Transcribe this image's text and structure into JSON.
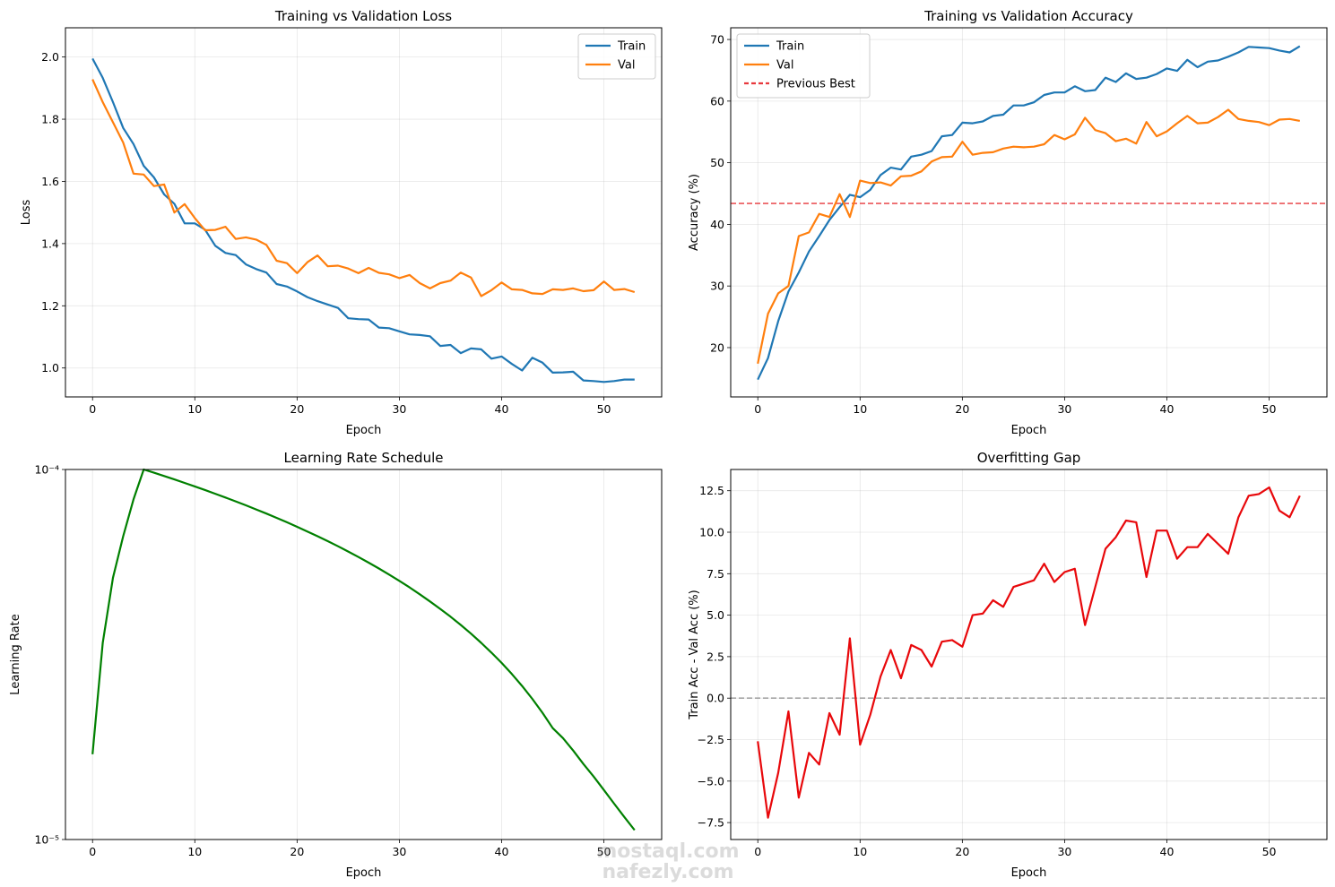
{
  "chart_data": [
    {
      "type": "line",
      "title": "Training vs Validation Loss",
      "xlabel": "Epoch",
      "ylabel": "Loss",
      "xlim": [
        -2.65,
        55.65
      ],
      "ylim": [
        0.907,
        2.094
      ],
      "xticks": [
        0,
        10,
        20,
        30,
        40,
        50
      ],
      "xtick_labels": [
        "0",
        "10",
        "20",
        "30",
        "40",
        "50"
      ],
      "yticks": [
        1.0,
        1.2,
        1.4,
        1.6,
        1.8,
        2.0
      ],
      "ytick_labels": [
        "1.0",
        "1.2",
        "1.4",
        "1.6",
        "1.8",
        "2.0"
      ],
      "grid": true,
      "legend": "upper right",
      "series": [
        {
          "name": "Train",
          "color": "#1f77b4",
          "x": [
            0,
            1,
            2,
            3,
            4,
            5,
            6,
            7,
            8,
            9,
            10,
            11,
            12,
            13,
            14,
            15,
            16,
            17,
            18,
            19,
            20,
            21,
            22,
            23,
            24,
            25,
            26,
            27,
            28,
            29,
            30,
            31,
            32,
            33,
            34,
            35,
            36,
            37,
            38,
            39,
            40,
            41,
            42,
            43,
            44,
            45,
            46,
            47,
            48,
            49,
            50,
            51,
            52,
            53
          ],
          "y": [
            1.995,
            1.933,
            1.855,
            1.772,
            1.72,
            1.65,
            1.613,
            1.558,
            1.528,
            1.465,
            1.465,
            1.445,
            1.393,
            1.37,
            1.363,
            1.333,
            1.318,
            1.307,
            1.27,
            1.262,
            1.246,
            1.228,
            1.215,
            1.204,
            1.193,
            1.16,
            1.157,
            1.156,
            1.13,
            1.128,
            1.118,
            1.108,
            1.106,
            1.102,
            1.071,
            1.074,
            1.048,
            1.063,
            1.06,
            1.03,
            1.037,
            1.013,
            0.992,
            1.033,
            1.017,
            0.985,
            0.986,
            0.988,
            0.96,
            0.958,
            0.955,
            0.958,
            0.963,
            0.963
          ]
        },
        {
          "name": "Val",
          "color": "#ff7f0e",
          "x": [
            0,
            1,
            2,
            3,
            4,
            5,
            6,
            7,
            8,
            9,
            10,
            11,
            12,
            13,
            14,
            15,
            16,
            17,
            18,
            19,
            20,
            21,
            22,
            23,
            24,
            25,
            26,
            27,
            28,
            29,
            30,
            31,
            32,
            33,
            34,
            35,
            36,
            37,
            38,
            39,
            40,
            41,
            42,
            43,
            44,
            45,
            46,
            47,
            48,
            49,
            50,
            51,
            52,
            53
          ],
          "y": [
            1.928,
            1.855,
            1.79,
            1.725,
            1.625,
            1.622,
            1.585,
            1.59,
            1.5,
            1.527,
            1.482,
            1.443,
            1.444,
            1.454,
            1.415,
            1.42,
            1.413,
            1.396,
            1.345,
            1.337,
            1.305,
            1.34,
            1.362,
            1.327,
            1.329,
            1.32,
            1.305,
            1.322,
            1.306,
            1.301,
            1.289,
            1.299,
            1.273,
            1.256,
            1.273,
            1.281,
            1.307,
            1.291,
            1.231,
            1.25,
            1.275,
            1.253,
            1.251,
            1.24,
            1.238,
            1.253,
            1.251,
            1.256,
            1.247,
            1.25,
            1.278,
            1.251,
            1.254,
            1.244
          ]
        }
      ]
    },
    {
      "type": "line",
      "title": "Training vs Validation Accuracy",
      "xlabel": "Epoch",
      "ylabel": "Accuracy (%)",
      "xlim": [
        -2.65,
        55.65
      ],
      "ylim": [
        12.0,
        71.9
      ],
      "xticks": [
        0,
        10,
        20,
        30,
        40,
        50
      ],
      "xtick_labels": [
        "0",
        "10",
        "20",
        "30",
        "40",
        "50"
      ],
      "yticks": [
        20,
        30,
        40,
        50,
        60,
        70
      ],
      "ytick_labels": [
        "20",
        "30",
        "40",
        "50",
        "60",
        "70"
      ],
      "grid": true,
      "legend": "upper left",
      "hline": {
        "name": "Previous Best",
        "y": 43.4,
        "color": "#e8383d",
        "style": "dashed"
      },
      "series": [
        {
          "name": "Train",
          "color": "#1f77b4",
          "x": [
            0,
            1,
            2,
            3,
            4,
            5,
            6,
            7,
            8,
            9,
            10,
            11,
            12,
            13,
            14,
            15,
            16,
            17,
            18,
            19,
            20,
            21,
            22,
            23,
            24,
            25,
            26,
            27,
            28,
            29,
            30,
            31,
            32,
            33,
            34,
            35,
            36,
            37,
            38,
            39,
            40,
            41,
            42,
            43,
            44,
            45,
            46,
            47,
            48,
            49,
            50,
            51,
            52,
            53
          ],
          "y": [
            14.8,
            18.3,
            24.3,
            29.1,
            32.2,
            35.6,
            38.1,
            40.7,
            42.8,
            44.8,
            44.4,
            45.6,
            48.0,
            49.2,
            48.9,
            51.0,
            51.3,
            51.9,
            54.3,
            54.5,
            56.5,
            56.4,
            56.7,
            57.6,
            57.8,
            59.3,
            59.3,
            59.8,
            61.0,
            61.4,
            61.4,
            62.4,
            61.6,
            61.8,
            63.8,
            63.1,
            64.5,
            63.6,
            63.8,
            64.4,
            65.3,
            64.9,
            66.7,
            65.5,
            66.4,
            66.6,
            67.2,
            67.9,
            68.8,
            68.7,
            68.6,
            68.2,
            67.9,
            68.9
          ]
        },
        {
          "name": "Val",
          "color": "#ff7f0e",
          "x": [
            0,
            1,
            2,
            3,
            4,
            5,
            6,
            7,
            8,
            9,
            10,
            11,
            12,
            13,
            14,
            15,
            16,
            17,
            18,
            19,
            20,
            21,
            22,
            23,
            24,
            25,
            26,
            27,
            28,
            29,
            30,
            31,
            32,
            33,
            34,
            35,
            36,
            37,
            38,
            39,
            40,
            41,
            42,
            43,
            44,
            45,
            46,
            47,
            48,
            49,
            50,
            51,
            52,
            53
          ],
          "y": [
            17.4,
            25.5,
            28.8,
            30.0,
            38.1,
            38.7,
            41.7,
            41.2,
            44.9,
            41.2,
            47.1,
            46.7,
            46.8,
            46.3,
            47.8,
            47.9,
            48.6,
            50.2,
            50.9,
            51.0,
            53.4,
            51.3,
            51.6,
            51.7,
            52.3,
            52.6,
            52.5,
            52.6,
            53.0,
            54.5,
            53.8,
            54.6,
            57.3,
            55.3,
            54.8,
            53.5,
            53.9,
            53.1,
            56.6,
            54.3,
            55.1,
            56.4,
            57.6,
            56.4,
            56.5,
            57.4,
            58.6,
            57.1,
            56.8,
            56.6,
            56.1,
            57.0,
            57.1,
            56.8
          ]
        }
      ]
    },
    {
      "type": "line",
      "title": "Learning Rate Schedule",
      "xlabel": "Epoch",
      "ylabel": "Learning Rate",
      "xscale": "linear",
      "yscale": "log",
      "xlim": [
        -2.65,
        55.65
      ],
      "ylim": [
        1e-05,
        0.0001
      ],
      "xticks": [
        0,
        10,
        20,
        30,
        40,
        50
      ],
      "xtick_labels": [
        "0",
        "10",
        "20",
        "30",
        "40",
        "50"
      ],
      "yticks": [
        1e-05,
        0.0001
      ],
      "ytick_labels": [
        "10⁻⁵",
        "10⁻⁴"
      ],
      "grid": true,
      "series": [
        {
          "name": "",
          "color": "#008000",
          "x": [
            0,
            1,
            2,
            3,
            4,
            5,
            6,
            7,
            8,
            9,
            10,
            11,
            12,
            13,
            14,
            15,
            16,
            17,
            18,
            19,
            20,
            21,
            22,
            23,
            24,
            25,
            26,
            27,
            28,
            29,
            30,
            31,
            32,
            33,
            34,
            35,
            36,
            37,
            38,
            39,
            40,
            41,
            42,
            43,
            44,
            45,
            46,
            47,
            48,
            49,
            50,
            51,
            52,
            53
          ],
          "y": [
            1.7e-05,
            3.4e-05,
            5.1e-05,
            6.6e-05,
            8.3e-05,
            0.0001,
            9.8e-05,
            9.6e-05,
            9.4e-05,
            9.2e-05,
            9e-05,
            8.8e-05,
            8.6e-05,
            8.4e-05,
            8.2e-05,
            8e-05,
            7.8e-05,
            7.6e-05,
            7.4e-05,
            7.2e-05,
            7e-05,
            6.8e-05,
            6.6e-05,
            6.4e-05,
            6.2e-05,
            6e-05,
            5.8e-05,
            5.6e-05,
            5.4e-05,
            5.2e-05,
            5e-05,
            4.8e-05,
            4.6e-05,
            4.4e-05,
            4.2e-05,
            4e-05,
            3.8e-05,
            3.6e-05,
            3.4e-05,
            3.2e-05,
            3e-05,
            2.8e-05,
            2.6e-05,
            2.4e-05,
            2.2e-05,
            2e-05,
            1.88e-05,
            1.74e-05,
            1.6e-05,
            1.48e-05,
            1.36e-05,
            1.25e-05,
            1.15e-05,
            1.06e-05
          ]
        }
      ]
    },
    {
      "type": "line",
      "title": "Overfitting Gap",
      "xlabel": "Epoch",
      "ylabel": "Train Acc - Val Acc (%)",
      "xlim": [
        -2.65,
        55.65
      ],
      "ylim": [
        -8.52,
        13.78
      ],
      "xticks": [
        0,
        10,
        20,
        30,
        40,
        50
      ],
      "xtick_labels": [
        "0",
        "10",
        "20",
        "30",
        "40",
        "50"
      ],
      "yticks": [
        -7.5,
        -5.0,
        -2.5,
        0.0,
        2.5,
        5.0,
        7.5,
        10.0,
        12.5
      ],
      "ytick_labels": [
        "−7.5",
        "−5.0",
        "−2.5",
        "0.0",
        "2.5",
        "5.0",
        "7.5",
        "10.0",
        "12.5"
      ],
      "grid": true,
      "hline": {
        "y": 0,
        "color": "#999999",
        "style": "dashed"
      },
      "series": [
        {
          "name": "",
          "color": "#e8080b",
          "x": [
            0,
            1,
            2,
            3,
            4,
            5,
            6,
            7,
            8,
            9,
            10,
            11,
            12,
            13,
            14,
            15,
            16,
            17,
            18,
            19,
            20,
            21,
            22,
            23,
            24,
            25,
            26,
            27,
            28,
            29,
            30,
            31,
            32,
            33,
            34,
            35,
            36,
            37,
            38,
            39,
            40,
            41,
            42,
            43,
            44,
            45,
            46,
            47,
            48,
            49,
            50,
            51,
            52,
            53
          ],
          "y": [
            -2.6,
            -7.2,
            -4.5,
            -0.8,
            -6.0,
            -3.3,
            -4.0,
            -0.9,
            -2.2,
            3.6,
            -2.8,
            -1.0,
            1.3,
            2.9,
            1.2,
            3.2,
            2.9,
            1.9,
            3.4,
            3.5,
            3.1,
            5.0,
            5.1,
            5.9,
            5.5,
            6.7,
            6.9,
            7.1,
            8.1,
            7.0,
            7.6,
            7.8,
            4.4,
            6.7,
            9.0,
            9.7,
            10.7,
            10.6,
            7.3,
            10.1,
            10.1,
            8.4,
            9.1,
            9.1,
            9.9,
            9.3,
            8.7,
            10.9,
            12.2,
            12.3,
            12.7,
            11.3,
            10.9,
            12.2
          ]
        }
      ]
    }
  ],
  "watermark": {
    "line1": "mostaql.com",
    "line2": "nafezly.com"
  }
}
